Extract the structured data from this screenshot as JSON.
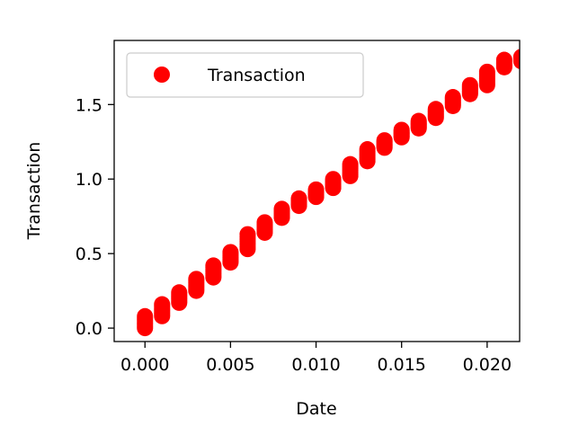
{
  "chart_data": {
    "type": "scatter",
    "xlabel": "Date",
    "ylabel": "Transaction",
    "xlim": [
      -0.0018,
      0.0219
    ],
    "ylim": [
      -0.09,
      1.93
    ],
    "xticks": [
      "0.000",
      "0.005",
      "0.010",
      "0.015",
      "0.020"
    ],
    "xtick_values": [
      0.0,
      0.005,
      0.01,
      0.015,
      0.02
    ],
    "yticks": [
      "0.0",
      "0.5",
      "1.0",
      "1.5"
    ],
    "ytick_values": [
      0.0,
      0.5,
      1.0,
      1.5
    ],
    "grid": false,
    "legend_position": "top-left",
    "series": [
      {
        "name": "Transaction",
        "color": "#ff0000",
        "marker": "circle",
        "points": [
          {
            "x": 0.0,
            "y_min": 0.0,
            "y_max": 0.08
          },
          {
            "x": 0.001,
            "y_min": 0.08,
            "y_max": 0.16
          },
          {
            "x": 0.002,
            "y_min": 0.17,
            "y_max": 0.24
          },
          {
            "x": 0.003,
            "y_min": 0.25,
            "y_max": 0.33
          },
          {
            "x": 0.004,
            "y_min": 0.34,
            "y_max": 0.42
          },
          {
            "x": 0.005,
            "y_min": 0.44,
            "y_max": 0.51
          },
          {
            "x": 0.006,
            "y_min": 0.53,
            "y_max": 0.63
          },
          {
            "x": 0.007,
            "y_min": 0.64,
            "y_max": 0.71
          },
          {
            "x": 0.008,
            "y_min": 0.74,
            "y_max": 0.8
          },
          {
            "x": 0.009,
            "y_min": 0.82,
            "y_max": 0.87
          },
          {
            "x": 0.01,
            "y_min": 0.88,
            "y_max": 0.93
          },
          {
            "x": 0.011,
            "y_min": 0.94,
            "y_max": 1.0
          },
          {
            "x": 0.012,
            "y_min": 1.02,
            "y_max": 1.1
          },
          {
            "x": 0.013,
            "y_min": 1.12,
            "y_max": 1.2
          },
          {
            "x": 0.014,
            "y_min": 1.21,
            "y_max": 1.26
          },
          {
            "x": 0.015,
            "y_min": 1.28,
            "y_max": 1.33
          },
          {
            "x": 0.016,
            "y_min": 1.34,
            "y_max": 1.39
          },
          {
            "x": 0.017,
            "y_min": 1.41,
            "y_max": 1.47
          },
          {
            "x": 0.018,
            "y_min": 1.49,
            "y_max": 1.55
          },
          {
            "x": 0.019,
            "y_min": 1.57,
            "y_max": 1.63
          },
          {
            "x": 0.02,
            "y_min": 1.63,
            "y_max": 1.72
          },
          {
            "x": 0.021,
            "y_min": 1.75,
            "y_max": 1.8
          },
          {
            "x": 0.022,
            "y_min": 1.79,
            "y_max": 1.82
          }
        ]
      }
    ]
  }
}
